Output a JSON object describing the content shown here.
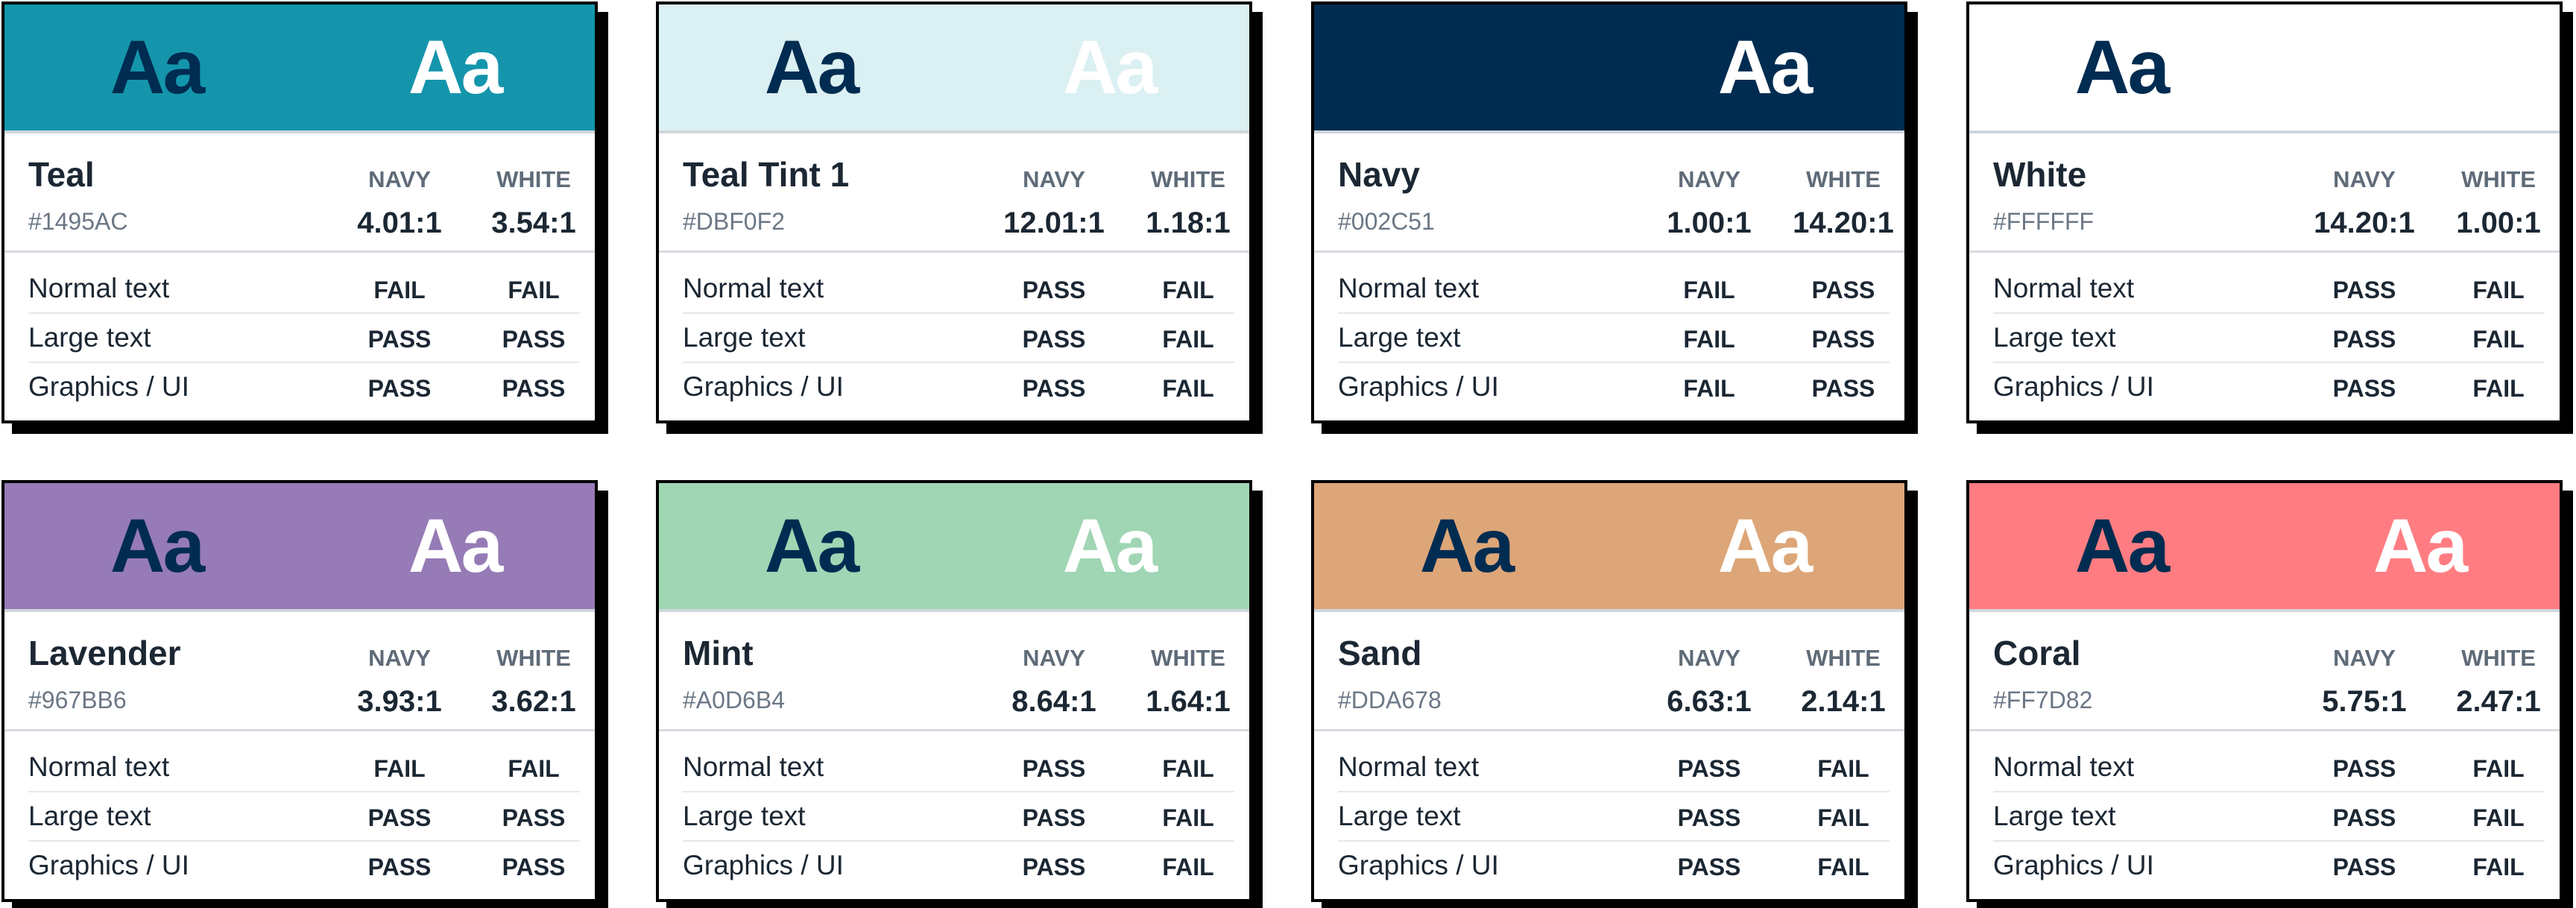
{
  "column_headers": [
    "NAVY",
    "WHITE"
  ],
  "sample_text": "Aa",
  "text_colors": {
    "navy": "#002C51",
    "white": "#FFFFFF"
  },
  "row_labels": [
    "Normal text",
    "Large text",
    "Graphics / UI"
  ],
  "cards": [
    {
      "name": "Teal",
      "hex": "#1495AC",
      "navy_ratio": "4.01:1",
      "white_ratio": "3.54:1",
      "results": [
        [
          "FAIL",
          "FAIL"
        ],
        [
          "PASS",
          "PASS"
        ],
        [
          "PASS",
          "PASS"
        ]
      ]
    },
    {
      "name": "Teal Tint 1",
      "hex": "#DBF0F2",
      "navy_ratio": "12.01:1",
      "white_ratio": "1.18:1",
      "results": [
        [
          "PASS",
          "FAIL"
        ],
        [
          "PASS",
          "FAIL"
        ],
        [
          "PASS",
          "FAIL"
        ]
      ]
    },
    {
      "name": "Navy",
      "hex": "#002C51",
      "navy_ratio": "1.00:1",
      "white_ratio": "14.20:1",
      "results": [
        [
          "FAIL",
          "PASS"
        ],
        [
          "FAIL",
          "PASS"
        ],
        [
          "FAIL",
          "PASS"
        ]
      ]
    },
    {
      "name": "White",
      "hex": "#FFFFFF",
      "navy_ratio": "14.20:1",
      "white_ratio": "1.00:1",
      "results": [
        [
          "PASS",
          "FAIL"
        ],
        [
          "PASS",
          "FAIL"
        ],
        [
          "PASS",
          "FAIL"
        ]
      ]
    },
    {
      "name": "Lavender",
      "hex": "#967BB6",
      "navy_ratio": "3.93:1",
      "white_ratio": "3.62:1",
      "results": [
        [
          "FAIL",
          "FAIL"
        ],
        [
          "PASS",
          "PASS"
        ],
        [
          "PASS",
          "PASS"
        ]
      ]
    },
    {
      "name": "Mint",
      "hex": "#A0D6B4",
      "navy_ratio": "8.64:1",
      "white_ratio": "1.64:1",
      "results": [
        [
          "PASS",
          "FAIL"
        ],
        [
          "PASS",
          "FAIL"
        ],
        [
          "PASS",
          "FAIL"
        ]
      ]
    },
    {
      "name": "Sand",
      "hex": "#DDA678",
      "navy_ratio": "6.63:1",
      "white_ratio": "2.14:1",
      "results": [
        [
          "PASS",
          "FAIL"
        ],
        [
          "PASS",
          "FAIL"
        ],
        [
          "PASS",
          "FAIL"
        ]
      ]
    },
    {
      "name": "Coral",
      "hex": "#FF7D82",
      "navy_ratio": "5.75:1",
      "white_ratio": "2.47:1",
      "results": [
        [
          "PASS",
          "FAIL"
        ],
        [
          "PASS",
          "FAIL"
        ],
        [
          "PASS",
          "FAIL"
        ]
      ]
    }
  ]
}
